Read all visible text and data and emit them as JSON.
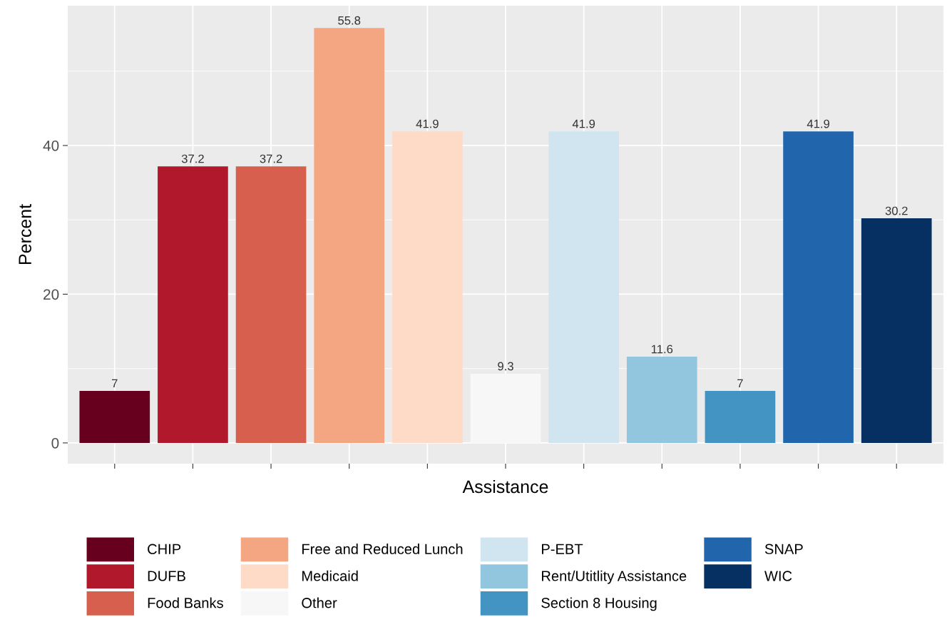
{
  "chart_data": {
    "type": "bar",
    "xlabel": "Assistance",
    "ylabel": "Percent",
    "categories": [
      null,
      null,
      null,
      null,
      null,
      null,
      null,
      null,
      null,
      null,
      null
    ],
    "series": [
      {
        "name": "CHIP",
        "color": "#67001f",
        "values": [
          7,
          null,
          null,
          null,
          null,
          null,
          null,
          null,
          null,
          null,
          null
        ]
      },
      {
        "name": "DUFB",
        "color": "#b2182b",
        "values": [
          null,
          37.2,
          null,
          null,
          null,
          null,
          null,
          null,
          null,
          null,
          null
        ]
      },
      {
        "name": "Food Banks",
        "color": "#d6604d",
        "values": [
          null,
          null,
          37.2,
          null,
          null,
          null,
          null,
          null,
          null,
          null,
          null
        ]
      },
      {
        "name": "Free and Reduced Lunch",
        "color": "#f4a582",
        "values": [
          null,
          null,
          null,
          55.8,
          null,
          null,
          null,
          null,
          null,
          null,
          null
        ]
      },
      {
        "name": "Medicaid",
        "color": "#fddbc7",
        "values": [
          null,
          null,
          null,
          null,
          41.9,
          null,
          null,
          null,
          null,
          null,
          null
        ]
      },
      {
        "name": "Other",
        "color": "#f7f7f7",
        "values": [
          null,
          null,
          null,
          null,
          null,
          9.3,
          null,
          null,
          null,
          null,
          null
        ]
      },
      {
        "name": "P-EBT",
        "color": "#d1e5f0",
        "values": [
          null,
          null,
          null,
          null,
          null,
          null,
          41.9,
          null,
          null,
          null,
          null
        ]
      },
      {
        "name": "Rent/Utitlity Assistance",
        "color": "#92c5de",
        "values": [
          null,
          null,
          null,
          null,
          null,
          null,
          null,
          11.6,
          null,
          null,
          null
        ]
      },
      {
        "name": "Section 8 Housing",
        "color": "#4393c3",
        "values": [
          null,
          null,
          null,
          null,
          null,
          null,
          null,
          null,
          7,
          null,
          null
        ]
      },
      {
        "name": "SNAP",
        "color": "#2166ac",
        "values": [
          null,
          null,
          null,
          null,
          null,
          null,
          null,
          null,
          null,
          41.9,
          null
        ]
      },
      {
        "name": "WIC",
        "color": "#053061",
        "values": [
          null,
          null,
          null,
          null,
          null,
          null,
          null,
          null,
          null,
          null,
          30.2
        ]
      }
    ],
    "ylim": [
      -2.79,
      58.8
    ],
    "yticks": [
      0,
      20,
      40
    ],
    "grid": true,
    "legend": "bottom",
    "data_labels": true,
    "tick_labels": "y"
  }
}
